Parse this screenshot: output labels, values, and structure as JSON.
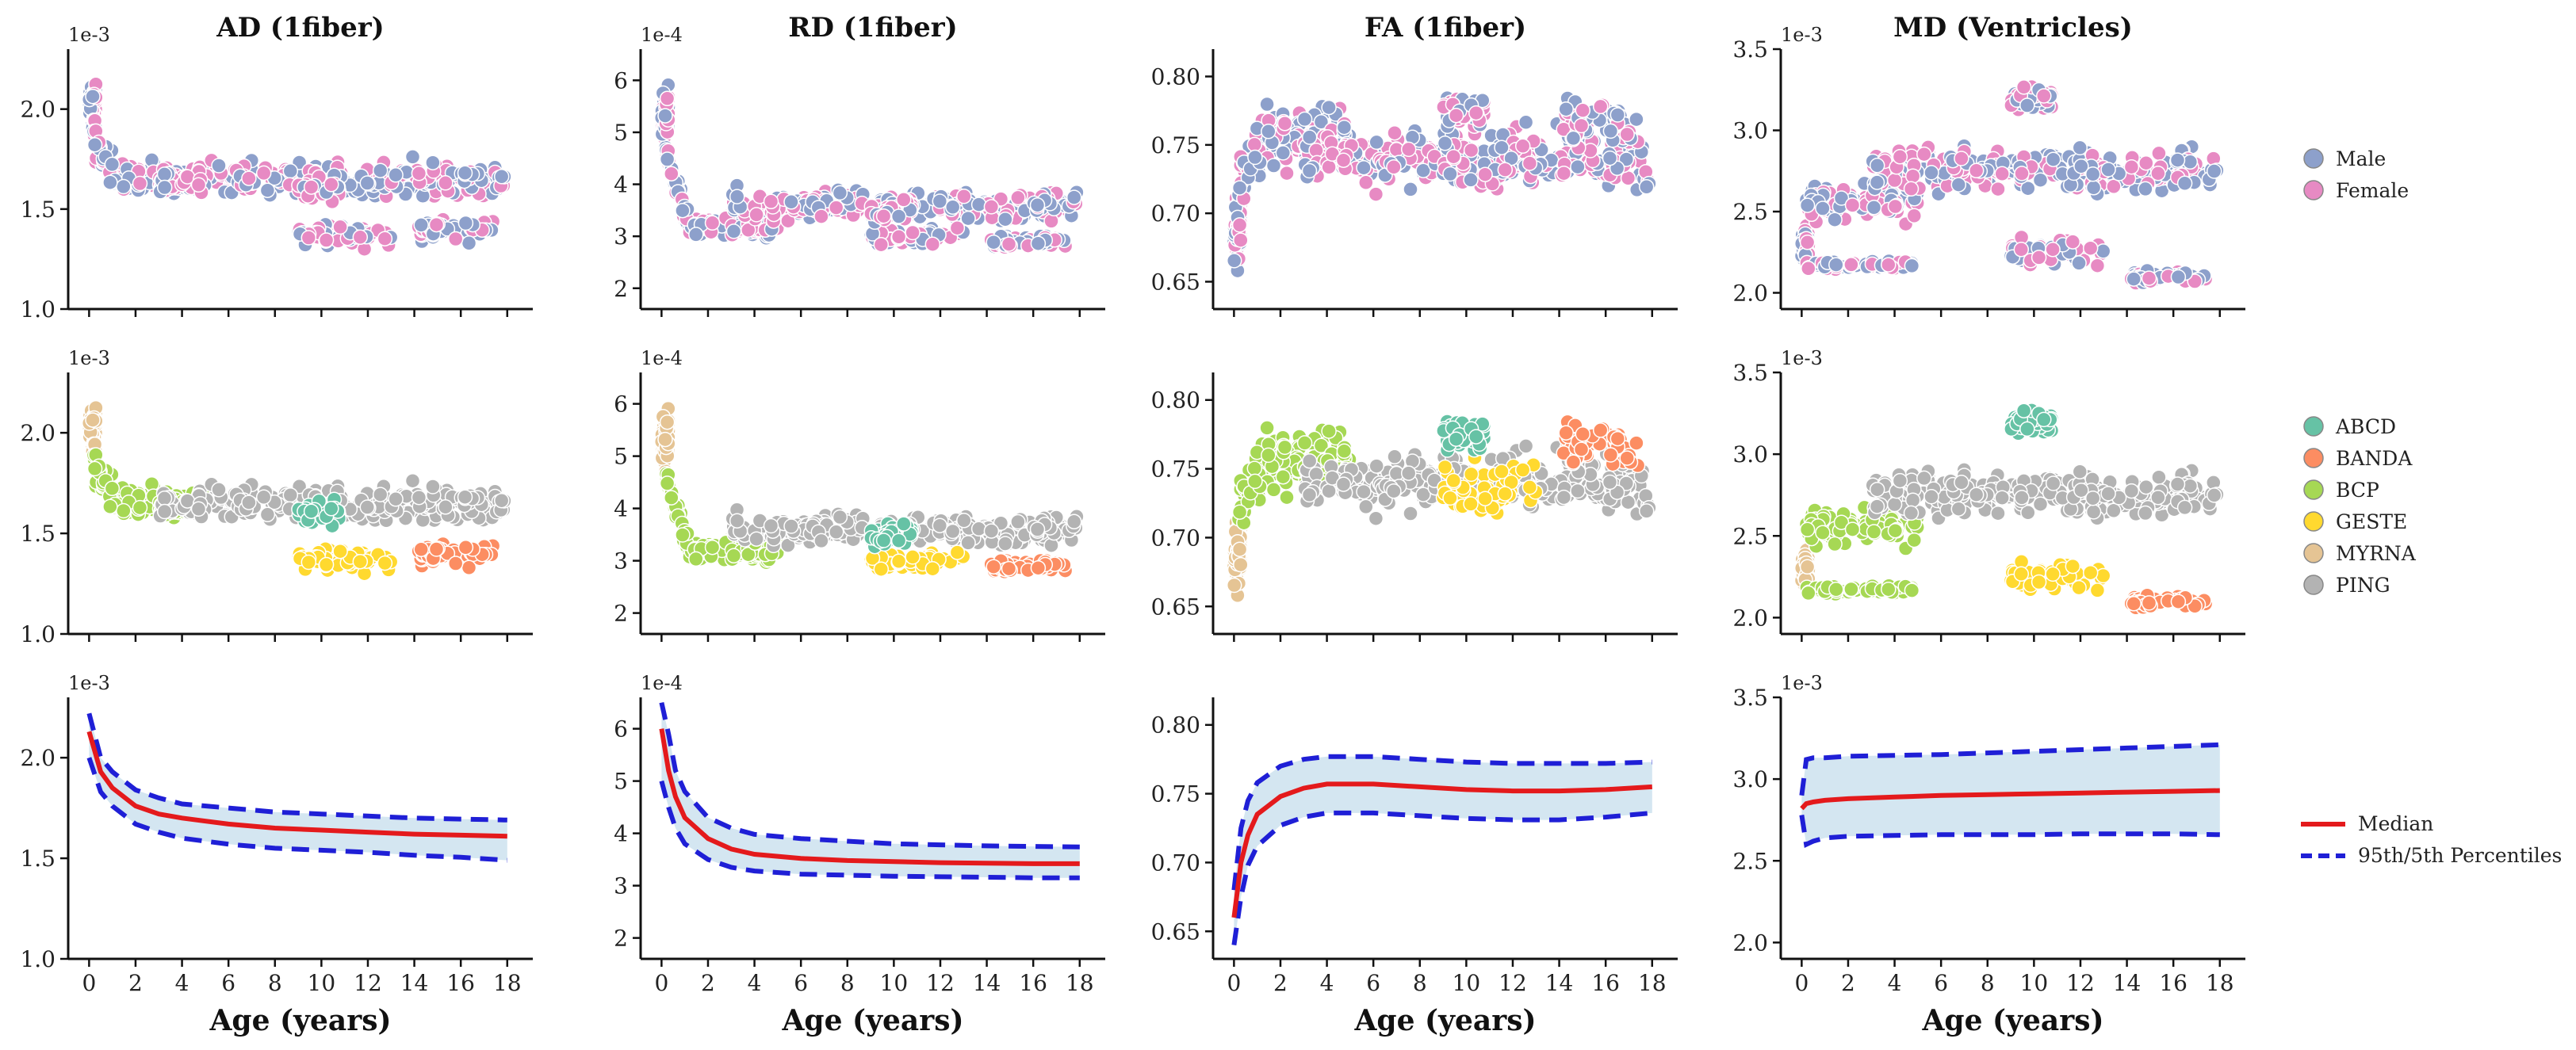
{
  "chart_data": {
    "type": "scatter",
    "columns": [
      {
        "key": "AD",
        "title": "AD (1fiber)",
        "y_ticks": [
          "1.0",
          "1.5",
          "2.0"
        ],
        "y_tick_values": [
          1.0,
          1.5,
          2.0
        ],
        "ylim": [
          1.0,
          2.3
        ],
        "offset": "1e-3"
      },
      {
        "key": "RD",
        "title": "RD (1fiber)",
        "y_ticks": [
          "2",
          "3",
          "4",
          "5",
          "6"
        ],
        "y_tick_values": [
          2,
          3,
          4,
          5,
          6
        ],
        "ylim": [
          1.6,
          6.6
        ],
        "offset": "1e-4"
      },
      {
        "key": "FA",
        "title": "FA (1fiber)",
        "y_ticks": [
          "0.65",
          "0.70",
          "0.75",
          "0.80"
        ],
        "y_tick_values": [
          0.65,
          0.7,
          0.75,
          0.8
        ],
        "ylim": [
          0.63,
          0.82
        ],
        "offset": ""
      },
      {
        "key": "MD",
        "title": "MD (Ventricles)",
        "y_ticks": [
          "2.0",
          "2.5",
          "3.0",
          "3.5"
        ],
        "y_tick_values": [
          2.0,
          2.5,
          3.0,
          3.5
        ],
        "ylim": [
          1.9,
          3.5
        ],
        "offset": "1e-3"
      }
    ],
    "x_ticks": [
      "0",
      "2",
      "4",
      "6",
      "8",
      "10",
      "12",
      "14",
      "16",
      "18"
    ],
    "x_tick_values": [
      0,
      2,
      4,
      6,
      8,
      10,
      12,
      14,
      16,
      18
    ],
    "xlim": [
      -0.9,
      19.1
    ],
    "xlabel": "Age (years)",
    "rows": [
      {
        "name": "sex",
        "type": "scatter",
        "legend": [
          {
            "label": "Male",
            "color": "#8da0cb"
          },
          {
            "label": "Female",
            "color": "#e78ac3"
          }
        ]
      },
      {
        "name": "study",
        "type": "scatter",
        "legend": [
          {
            "label": "ABCD",
            "color": "#66c2a5"
          },
          {
            "label": "BANDA",
            "color": "#fc8d62"
          },
          {
            "label": "BCP",
            "color": "#a6d854"
          },
          {
            "label": "GESTE",
            "color": "#ffd92f"
          },
          {
            "label": "MYRNA",
            "color": "#e5c494"
          },
          {
            "label": "PING",
            "color": "#b3b3b3"
          }
        ]
      },
      {
        "name": "normative",
        "type": "line",
        "legend": [
          {
            "label": "Median",
            "color": "#e41a1c"
          },
          {
            "label": "95th/5th Percentiles",
            "color": "#1f1fd6"
          }
        ],
        "band_color": "#d4e6f1"
      }
    ],
    "studies": [
      {
        "name": "MYRNA",
        "age_range": [
          0.0,
          0.3
        ],
        "values": {
          "AD": [
            2.02,
            0.1
          ],
          "RD": [
            5.3,
            0.5
          ],
          "FA": [
            0.69,
            0.02
          ],
          "MD": [
            2.3,
            0.12
          ]
        }
      },
      {
        "name": "BCP",
        "age_range": [
          0.2,
          5.0
        ],
        "values": {
          "AD": [
            1.65,
            0.07
          ],
          "RD": [
            3.2,
            0.2
          ],
          "FA": [
            0.755,
            0.02
          ],
          "MD": [
            2.55,
            0.1
          ]
        }
      },
      {
        "name": "PING",
        "age_range": [
          3.0,
          18.0
        ],
        "values": {
          "AD": [
            1.65,
            0.08
          ],
          "RD": [
            3.6,
            0.25
          ],
          "FA": [
            0.74,
            0.018
          ],
          "MD": [
            2.75,
            0.12
          ]
        }
      },
      {
        "name": "GESTE",
        "age_range": [
          9.0,
          13.0
        ],
        "values": {
          "AD": [
            1.37,
            0.06
          ],
          "RD": [
            3.0,
            0.15
          ],
          "FA": [
            0.735,
            0.02
          ],
          "MD": [
            2.25,
            0.08
          ]
        }
      },
      {
        "name": "ABCD",
        "age_range": [
          9.0,
          10.8
        ],
        "values": {
          "AD": [
            1.6,
            0.05
          ],
          "RD": [
            3.5,
            0.2
          ],
          "FA": [
            0.775,
            0.01
          ],
          "MD": [
            3.2,
            0.07
          ]
        }
      },
      {
        "name": "BANDA",
        "age_range": [
          14.0,
          17.5
        ],
        "values": {
          "AD": [
            1.4,
            0.05
          ],
          "RD": [
            2.9,
            0.12
          ],
          "FA": [
            0.765,
            0.015
          ],
          "MD": [
            2.1,
            0.04
          ]
        }
      }
    ],
    "curves": {
      "AD": {
        "ages": [
          0,
          0.5,
          1,
          2,
          3,
          4,
          6,
          8,
          10,
          12,
          14,
          16,
          18
        ],
        "median": [
          2.13,
          1.93,
          1.85,
          1.76,
          1.72,
          1.7,
          1.67,
          1.65,
          1.64,
          1.63,
          1.62,
          1.615,
          1.61
        ],
        "upper": [
          2.22,
          2.0,
          1.93,
          1.84,
          1.8,
          1.77,
          1.75,
          1.73,
          1.72,
          1.71,
          1.7,
          1.695,
          1.69
        ],
        "lower": [
          2.0,
          1.83,
          1.76,
          1.67,
          1.63,
          1.6,
          1.57,
          1.55,
          1.54,
          1.53,
          1.515,
          1.505,
          1.49
        ]
      },
      "RD": {
        "ages": [
          0,
          0.3,
          0.6,
          1,
          2,
          3,
          4,
          6,
          8,
          10,
          12,
          14,
          16,
          18
        ],
        "median": [
          6.0,
          5.2,
          4.7,
          4.3,
          3.9,
          3.7,
          3.6,
          3.52,
          3.48,
          3.46,
          3.44,
          3.43,
          3.42,
          3.42
        ],
        "upper": [
          6.5,
          5.9,
          5.2,
          4.8,
          4.3,
          4.1,
          3.98,
          3.9,
          3.85,
          3.8,
          3.78,
          3.76,
          3.75,
          3.74
        ],
        "lower": [
          5.0,
          4.5,
          4.1,
          3.8,
          3.5,
          3.35,
          3.28,
          3.22,
          3.2,
          3.18,
          3.17,
          3.16,
          3.15,
          3.15
        ]
      },
      "FA": {
        "ages": [
          0,
          0.3,
          0.6,
          1,
          2,
          3,
          4,
          6,
          8,
          10,
          12,
          14,
          16,
          18
        ],
        "median": [
          0.66,
          0.7,
          0.72,
          0.735,
          0.748,
          0.754,
          0.757,
          0.757,
          0.755,
          0.753,
          0.752,
          0.752,
          0.753,
          0.755
        ],
        "upper": [
          0.68,
          0.725,
          0.745,
          0.758,
          0.77,
          0.775,
          0.777,
          0.777,
          0.775,
          0.773,
          0.772,
          0.772,
          0.772,
          0.773
        ],
        "lower": [
          0.64,
          0.675,
          0.698,
          0.712,
          0.727,
          0.733,
          0.736,
          0.736,
          0.734,
          0.732,
          0.731,
          0.731,
          0.733,
          0.736
        ]
      },
      "MD": {
        "ages": [
          0,
          0.2,
          0.5,
          1,
          2,
          4,
          6,
          8,
          10,
          12,
          14,
          16,
          18
        ],
        "median": [
          2.82,
          2.85,
          2.86,
          2.87,
          2.88,
          2.89,
          2.9,
          2.905,
          2.91,
          2.915,
          2.92,
          2.925,
          2.93
        ],
        "upper": [
          2.9,
          3.12,
          3.13,
          3.13,
          3.14,
          3.145,
          3.15,
          3.16,
          3.17,
          3.18,
          3.19,
          3.2,
          3.21
        ],
        "lower": [
          2.78,
          2.6,
          2.62,
          2.64,
          2.65,
          2.655,
          2.66,
          2.66,
          2.66,
          2.665,
          2.665,
          2.665,
          2.66
        ]
      }
    }
  }
}
